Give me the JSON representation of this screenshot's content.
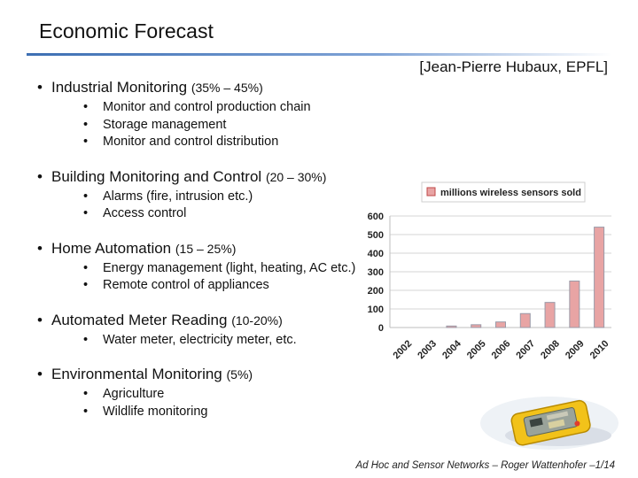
{
  "slide": {
    "title": "Economic Forecast",
    "credit": "[Jean-Pierre Hubaux, EPFL]",
    "bullets": [
      {
        "label": "Industrial Monitoring",
        "pct": "(35% – 45%)",
        "items": [
          "Monitor and control production chain",
          "Storage management",
          "Monitor and control distribution"
        ]
      },
      {
        "label": "Building Monitoring and Control",
        "pct": "(20 – 30%)",
        "items": [
          "Alarms (fire, intrusion etc.)",
          "Access control"
        ]
      },
      {
        "label": "Home Automation",
        "pct": "(15 – 25%)",
        "items": [
          "Energy management (light, heating, AC etc.)",
          "Remote control of appliances"
        ]
      },
      {
        "label": "Automated Meter Reading",
        "pct": "(10-20%)",
        "items": [
          "Water meter, electricity meter, etc."
        ]
      },
      {
        "label": "Environmental Monitoring",
        "pct": "(5%)",
        "items": [
          "Agriculture",
          "Wildlife monitoring"
        ]
      }
    ],
    "footer": "Ad Hoc and Sensor Networks – Roger Wattenhofer –1/14",
    "bar_color": "#e8a4a4",
    "bar_edge": "#9a9aa8"
  },
  "chart_data": {
    "type": "bar",
    "legend": "millions wireless sensors sold",
    "legend_position": "top",
    "categories": [
      "2002",
      "2003",
      "2004",
      "2005",
      "2006",
      "2007",
      "2008",
      "2009",
      "2010"
    ],
    "values": [
      0,
      0,
      8,
      15,
      30,
      75,
      135,
      250,
      540
    ],
    "ylim": [
      0,
      600
    ],
    "yticks": [
      0,
      100,
      200,
      300,
      400,
      500,
      600
    ],
    "grid": true
  }
}
